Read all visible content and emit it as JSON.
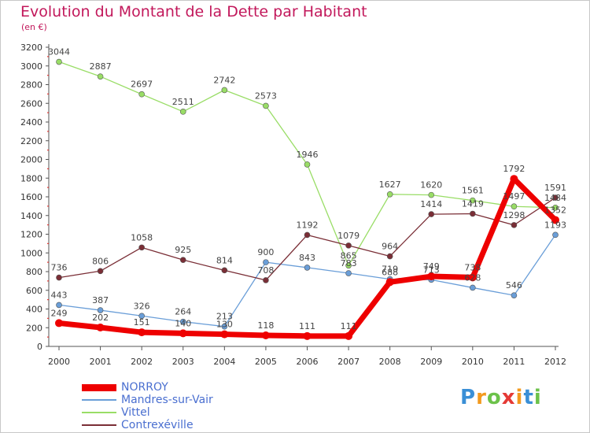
{
  "title": "Evolution du Montant de la Dette par Habitant",
  "unit": "(en €)",
  "logo": {
    "text": "Proxiti",
    "letters": [
      {
        "ch": "P",
        "color": "#3a8fd6"
      },
      {
        "ch": "r",
        "color": "#f39a1e"
      },
      {
        "ch": "o",
        "color": "#6cc24a"
      },
      {
        "ch": "x",
        "color": "#e53935"
      },
      {
        "ch": "i",
        "color": "#f39a1e"
      },
      {
        "ch": "t",
        "color": "#3a8fd6"
      },
      {
        "ch": "i",
        "color": "#6cc24a"
      }
    ]
  },
  "chart_data": {
    "type": "line",
    "title": "Evolution du Montant de la Dette par Habitant",
    "subtitle": "(en €)",
    "xlabel": "",
    "ylabel": "",
    "ylim": [
      0,
      3200
    ],
    "yticks": [
      0,
      200,
      400,
      600,
      800,
      1000,
      1200,
      1400,
      1600,
      1800,
      2000,
      2200,
      2400,
      2600,
      2800,
      3000,
      3200
    ],
    "categories": [
      "2000",
      "2001",
      "2002",
      "2003",
      "2004",
      "2005",
      "2006",
      "2007",
      "2008",
      "2009",
      "2010",
      "2011",
      "2012"
    ],
    "grid": false,
    "legend_position": "bottom-left",
    "series": [
      {
        "name": "NORROY",
        "color": "#ee0000",
        "width": 7,
        "marker": 5,
        "values": [
          249,
          202,
          151,
          140,
          130,
          118,
          111,
          111,
          688,
          749,
          738,
          1792,
          1352
        ]
      },
      {
        "name": "Mandres-sur-Vair",
        "color": "#6a9ed8",
        "width": 1.3,
        "marker": 3.5,
        "values": [
          443,
          387,
          326,
          264,
          213,
          900,
          843,
          783,
          719,
          713,
          628,
          546,
          1193
        ]
      },
      {
        "name": "Vittel",
        "color": "#99dd66",
        "width": 1.3,
        "marker": 3.5,
        "values": [
          3044,
          2887,
          2697,
          2511,
          2742,
          2573,
          1946,
          865,
          1627,
          1620,
          1561,
          1497,
          1484
        ]
      },
      {
        "name": "Contrexéville",
        "color": "#7a2e36",
        "width": 1.3,
        "marker": 3.5,
        "values": [
          736,
          806,
          1058,
          925,
          814,
          708,
          1192,
          1079,
          964,
          1414,
          1419,
          1298,
          1591
        ]
      }
    ],
    "draw_order": [
      2,
      1,
      3,
      0
    ]
  }
}
